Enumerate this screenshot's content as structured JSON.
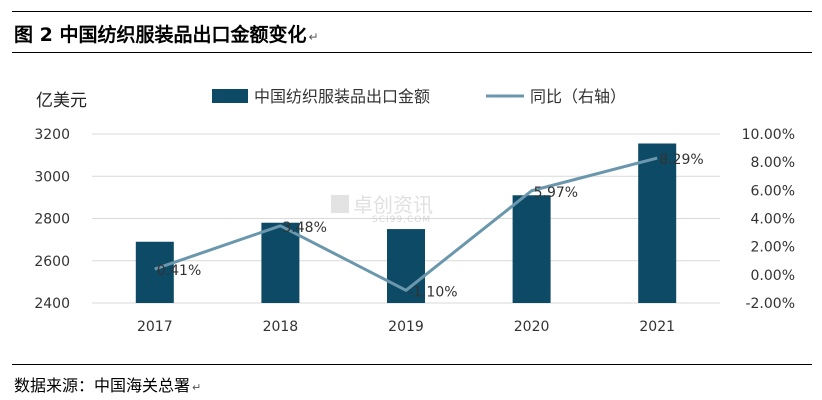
{
  "figure": {
    "title": "图 2  中国纺织服装品出口金额变化",
    "title_mark": "↵",
    "source": "数据来源：中国海关总署",
    "source_mark": "↵"
  },
  "watermark": {
    "text": "卓创资讯",
    "subtext": "SCI99.COM"
  },
  "chart_data": {
    "type": "bar",
    "categories": [
      "2017",
      "2018",
      "2019",
      "2020",
      "2021"
    ],
    "series": [
      {
        "name": "中国纺织服装品出口金额",
        "type": "bar",
        "axis": "left",
        "values": [
          2690,
          2780,
          2750,
          2910,
          3155
        ]
      },
      {
        "name": "同比（右轴）",
        "type": "line",
        "axis": "right",
        "values": [
          0.41,
          3.48,
          -1.1,
          5.97,
          8.29
        ],
        "labels": [
          "0.41%",
          "3.48%",
          "-1.10%",
          "5.97%",
          "8.29%"
        ]
      }
    ],
    "left_axis": {
      "unit_label": "亿美元",
      "range": [
        2400,
        3200
      ],
      "ticks": [
        "2400",
        "2600",
        "2800",
        "3000",
        "3200"
      ]
    },
    "right_axis": {
      "range": [
        -2,
        10
      ],
      "ticks": [
        "-2.00%",
        "0.00%",
        "2.00%",
        "4.00%",
        "6.00%",
        "8.00%",
        "10.00%"
      ]
    },
    "legend_position": "top",
    "grid": true,
    "colors": {
      "bar": "#0d4a66",
      "line": "#6b97ad",
      "grid": "#d9d9d9"
    }
  }
}
